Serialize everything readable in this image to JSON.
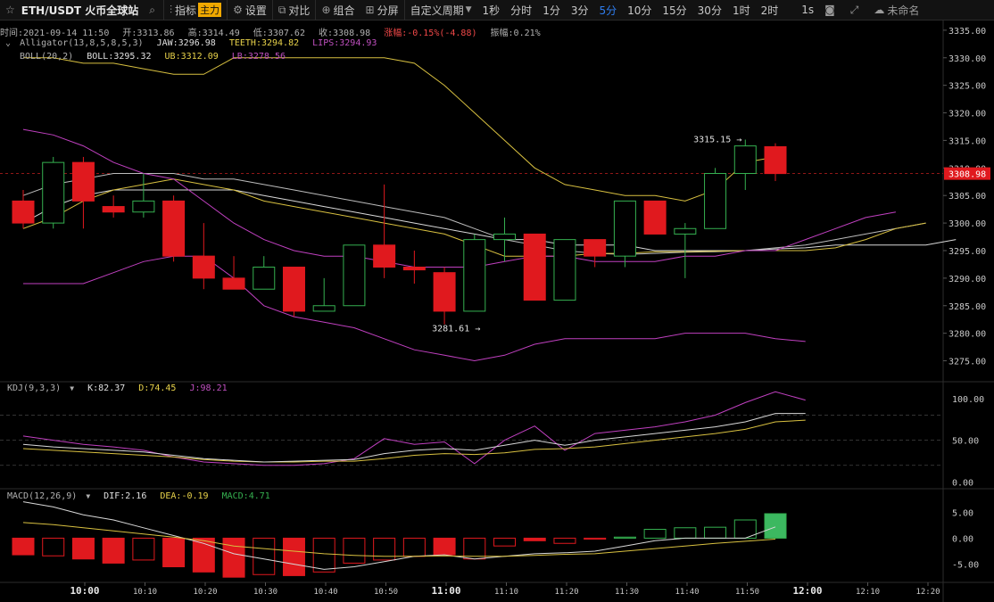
{
  "toolbar": {
    "symbol": "ETH/USDT 火币全球站",
    "indicators_label": "指标",
    "main_tag": "主力",
    "settings_label": "设置",
    "compare_label": "对比",
    "combo_label": "组合",
    "split_label": "分屏",
    "custom_period_label": "自定义周期",
    "periods": [
      "1秒",
      "分时",
      "1分",
      "3分",
      "5分",
      "10分",
      "15分",
      "30分",
      "1时",
      "2时"
    ],
    "active_period": "5分",
    "seconds_label": "1s",
    "layout_name": "未命名",
    "accent_color": "#2f7ef0"
  },
  "info": {
    "time": "时间:2021-09-14 11:50",
    "open": "开:3313.86",
    "high": "高:3314.49",
    "low": "低:3307.62",
    "close": "收:3308.98",
    "change": "涨幅:-0.15%(-4.88)",
    "amplitude": "振幅:0.21%"
  },
  "alligator": {
    "name": "Alligator(13,8,5,8,5,3)",
    "jaw": "JAW:3296.98",
    "teeth": "TEETH:3294.82",
    "lips": "LIPS:3294.93"
  },
  "boll": {
    "name": "BOLL(20,2)",
    "boll": "BOLL:3295.32",
    "ub": "UB:3312.09",
    "lb": "LB:3278.56"
  },
  "kdj": {
    "name": "KDJ(9,3,3)",
    "k": "K:82.37",
    "d": "D:74.45",
    "j": "J:98.21"
  },
  "macd": {
    "name": "MACD(12,26,9)",
    "dif": "DIF:2.16",
    "dea": "DEA:-0.19",
    "macd": "MACD:4.71"
  },
  "colors": {
    "up": "#35b050",
    "down": "#e0191e",
    "yellow": "#d8c040",
    "white": "#d8d8d8",
    "pink": "#c040c0",
    "grid": "#1e1e1e",
    "axis_text": "#c8c8c8"
  },
  "chart_data": {
    "type": "candlestick",
    "price_axis": {
      "min": 3271.2,
      "max": 3336.6,
      "ticks": [
        3335,
        3330,
        3325,
        3320,
        3315,
        3310,
        3305,
        3300,
        3295,
        3290,
        3285,
        3280,
        3275
      ]
    },
    "time_ticks": [
      "10:00",
      "10:10",
      "10:20",
      "10:30",
      "10:40",
      "10:50",
      "11:00",
      "11:10",
      "11:20",
      "11:30",
      "11:40",
      "11:50",
      "12:00",
      "12:10",
      "12:20"
    ],
    "candles": [
      {
        "o": 3304,
        "h": 3306,
        "l": 3299,
        "c": 3300
      },
      {
        "o": 3300,
        "h": 3312,
        "l": 3299,
        "c": 3311
      },
      {
        "o": 3311,
        "h": 3312,
        "l": 3299,
        "c": 3304
      },
      {
        "o": 3303,
        "h": 3305,
        "l": 3301,
        "c": 3302
      },
      {
        "o": 3302,
        "h": 3309,
        "l": 3301,
        "c": 3304
      },
      {
        "o": 3304,
        "h": 3305,
        "l": 3293,
        "c": 3294
      },
      {
        "o": 3294,
        "h": 3300,
        "l": 3288,
        "c": 3290
      },
      {
        "o": 3290,
        "h": 3294,
        "l": 3288,
        "c": 3288
      },
      {
        "o": 3288,
        "h": 3294,
        "l": 3288,
        "c": 3292
      },
      {
        "o": 3292,
        "h": 3292,
        "l": 3283,
        "c": 3284
      },
      {
        "o": 3284,
        "h": 3290,
        "l": 3284,
        "c": 3285
      },
      {
        "o": 3285,
        "h": 3296,
        "l": 3285,
        "c": 3296
      },
      {
        "o": 3296,
        "h": 3307,
        "l": 3290,
        "c": 3292
      },
      {
        "o": 3292,
        "h": 3295,
        "l": 3289,
        "c": 3291.5
      },
      {
        "o": 3291,
        "h": 3292,
        "l": 3281.61,
        "c": 3284
      },
      {
        "o": 3284,
        "h": 3298,
        "l": 3284,
        "c": 3297
      },
      {
        "o": 3297,
        "h": 3301,
        "l": 3293,
        "c": 3298
      },
      {
        "o": 3298,
        "h": 3298,
        "l": 3286,
        "c": 3286
      },
      {
        "o": 3286,
        "h": 3297,
        "l": 3286,
        "c": 3297
      },
      {
        "o": 3297,
        "h": 3297,
        "l": 3292,
        "c": 3294
      },
      {
        "o": 3294,
        "h": 3304,
        "l": 3292,
        "c": 3304
      },
      {
        "o": 3304,
        "h": 3304,
        "l": 3298,
        "c": 3298
      },
      {
        "o": 3298,
        "h": 3300,
        "l": 3290,
        "c": 3299
      },
      {
        "o": 3299,
        "h": 3310,
        "l": 3299,
        "c": 3309
      },
      {
        "o": 3309,
        "h": 3315.15,
        "l": 3306,
        "c": 3314
      },
      {
        "o": 3313.86,
        "h": 3314.49,
        "l": 3307.62,
        "c": 3308.98
      }
    ],
    "last_price": "3308.98",
    "high_label": "3315.15 →",
    "low_label": "3281.61 →",
    "boll_ub": [
      3330,
      3330,
      3329,
      3329,
      3328,
      3327,
      3327,
      3330,
      3330,
      3330,
      3330,
      3330,
      3330,
      3329,
      3325,
      3320,
      3315,
      3310,
      3307,
      3306,
      3305,
      3305,
      3304,
      3306,
      3311,
      3312
    ],
    "boll_mid": [
      3300,
      3303,
      3305,
      3306,
      3306,
      3306,
      3306,
      3306,
      3305,
      3304,
      3303,
      3302,
      3301,
      3300,
      3299,
      3298,
      3297,
      3297,
      3296,
      3296,
      3296,
      3295,
      3295,
      3295,
      3295,
      3295.3,
      3295.5,
      3296,
      3296,
      3296,
      3296,
      3297
    ],
    "boll_lb": [
      3289,
      3289,
      3289,
      3291,
      3293,
      3294,
      3294,
      3290,
      3285,
      3283,
      3282,
      3281,
      3279,
      3277,
      3276,
      3275,
      3276,
      3278,
      3279,
      3279,
      3279,
      3279,
      3280,
      3280,
      3280,
      3279,
      3278.5
    ],
    "jaw": [
      3305,
      3307,
      3308,
      3309,
      3309,
      3309,
      3308,
      3308,
      3307,
      3306,
      3305,
      3304,
      3303,
      3302,
      3301,
      3299,
      3297,
      3296,
      3295,
      3294.5,
      3294.3,
      3294.5,
      3294.7,
      3294.8,
      3295,
      3295.5,
      3296,
      3297,
      3298,
      3299,
      3300
    ],
    "teeth": [
      3299,
      3301,
      3304,
      3306,
      3307,
      3308,
      3307,
      3306,
      3304,
      3303,
      3302,
      3301,
      3300,
      3299,
      3298,
      3296,
      3294,
      3294,
      3294,
      3294.5,
      3294.5,
      3294.8,
      3294.8,
      3294.9,
      3295,
      3295,
      3295,
      3295.5,
      3297,
      3299,
      3300
    ],
    "lips": [
      3317,
      3316,
      3314,
      3311,
      3309,
      3308,
      3304,
      3300,
      3297,
      3295,
      3294,
      3294,
      3293,
      3292,
      3292,
      3292,
      3293,
      3294,
      3294,
      3293,
      3293,
      3293,
      3294,
      3294,
      3295,
      3295,
      3297,
      3299,
      3301,
      3302
    ],
    "kdj_axis": {
      "min": -8,
      "max": 120,
      "ticks": [
        "100.00",
        "50.00",
        "0.00"
      ],
      "ref_levels": [
        80,
        50,
        20
      ]
    },
    "kdj_k": [
      45,
      42,
      40,
      38,
      36,
      32,
      28,
      26,
      24,
      25,
      26,
      27,
      34,
      38,
      40,
      38,
      44,
      50,
      44,
      50,
      54,
      58,
      62,
      66,
      72,
      82,
      82
    ],
    "kdj_d": [
      40,
      38,
      36,
      34,
      32,
      30,
      27,
      25,
      24,
      24,
      25,
      25,
      28,
      32,
      34,
      33,
      35,
      39,
      40,
      42,
      46,
      50,
      54,
      58,
      63,
      72,
      74
    ],
    "kdj_j": [
      55,
      50,
      45,
      42,
      38,
      30,
      24,
      22,
      20,
      20,
      22,
      28,
      52,
      45,
      48,
      22,
      50,
      67,
      38,
      58,
      62,
      66,
      72,
      80,
      95,
      108,
      98
    ],
    "macd_axis": {
      "min": -8.5,
      "max": 9.5,
      "ticks": [
        "5.00",
        "0.00",
        "-5.00"
      ]
    },
    "macd_hist": [
      -3.2,
      -3.4,
      -4.0,
      -4.8,
      -4.2,
      -5.5,
      -6.5,
      -7.5,
      -7.0,
      -7.2,
      -6.5,
      -4.8,
      -4.2,
      -3.5,
      -3.2,
      -4.0,
      -1.5,
      -0.5,
      -1.0,
      -0.2,
      0.2,
      1.7,
      2.0,
      2.1,
      3.5,
      4.7
    ],
    "macd_dif": [
      7.0,
      6.0,
      4.5,
      3.5,
      2.0,
      0.5,
      -1.0,
      -3.0,
      -4.0,
      -5.0,
      -6.0,
      -5.5,
      -4.5,
      -3.5,
      -3.2,
      -4.0,
      -3.5,
      -3.0,
      -2.8,
      -2.5,
      -1.5,
      -0.5,
      0.0,
      0.0,
      0.0,
      2.16
    ],
    "macd_dea": [
      3.0,
      2.6,
      2.0,
      1.4,
      0.8,
      0.2,
      -0.5,
      -1.5,
      -2.0,
      -2.5,
      -3.0,
      -3.3,
      -3.5,
      -3.5,
      -3.4,
      -3.5,
      -3.5,
      -3.3,
      -3.1,
      -3.0,
      -2.5,
      -2.0,
      -1.5,
      -1.0,
      -0.6,
      -0.19
    ]
  }
}
